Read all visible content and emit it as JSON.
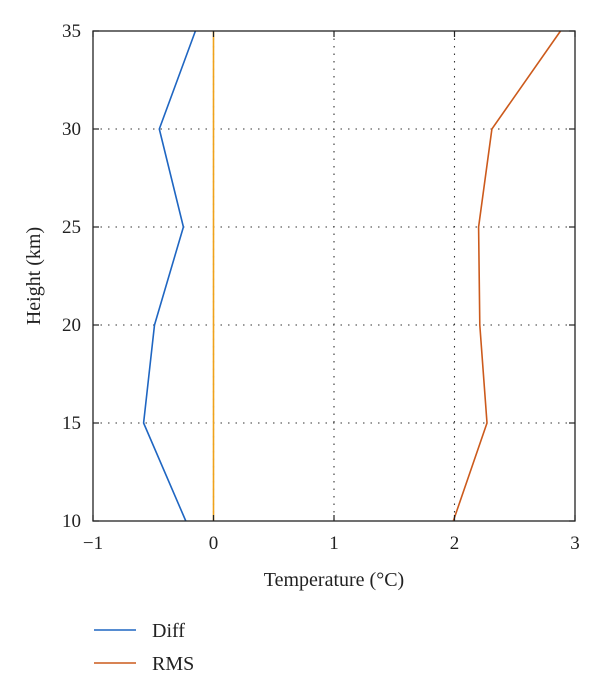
{
  "chart_data": {
    "type": "line",
    "xlabel": "Temperature (°C)",
    "ylabel": "Height (km)",
    "xlim": [
      -1,
      3
    ],
    "ylim": [
      10,
      35
    ],
    "xticks": [
      -1,
      0,
      1,
      2,
      3
    ],
    "yticks": [
      10,
      15,
      20,
      25,
      30,
      35
    ],
    "xtick_labels": [
      "−1",
      "0",
      "1",
      "2",
      "3"
    ],
    "ytick_labels": [
      "10",
      "15",
      "20",
      "25",
      "30",
      "35"
    ],
    "grid": true,
    "legend_position": "bottom-left-outside",
    "series": [
      {
        "name": "Diff",
        "color": "#1f66c2",
        "x": [
          -0.23,
          -0.58,
          -0.49,
          -0.25,
          -0.45,
          -0.15
        ],
        "y": [
          10,
          15,
          20,
          25,
          30,
          35
        ]
      },
      {
        "name": "RMS",
        "color": "#cc5a1c",
        "x": [
          1.99,
          2.27,
          2.21,
          2.2,
          2.31,
          2.88
        ],
        "y": [
          10,
          15,
          20,
          25,
          30,
          35
        ]
      }
    ],
    "reference_lines": [
      {
        "axis": "x",
        "value": 0,
        "color": "#f0a21a"
      }
    ]
  }
}
